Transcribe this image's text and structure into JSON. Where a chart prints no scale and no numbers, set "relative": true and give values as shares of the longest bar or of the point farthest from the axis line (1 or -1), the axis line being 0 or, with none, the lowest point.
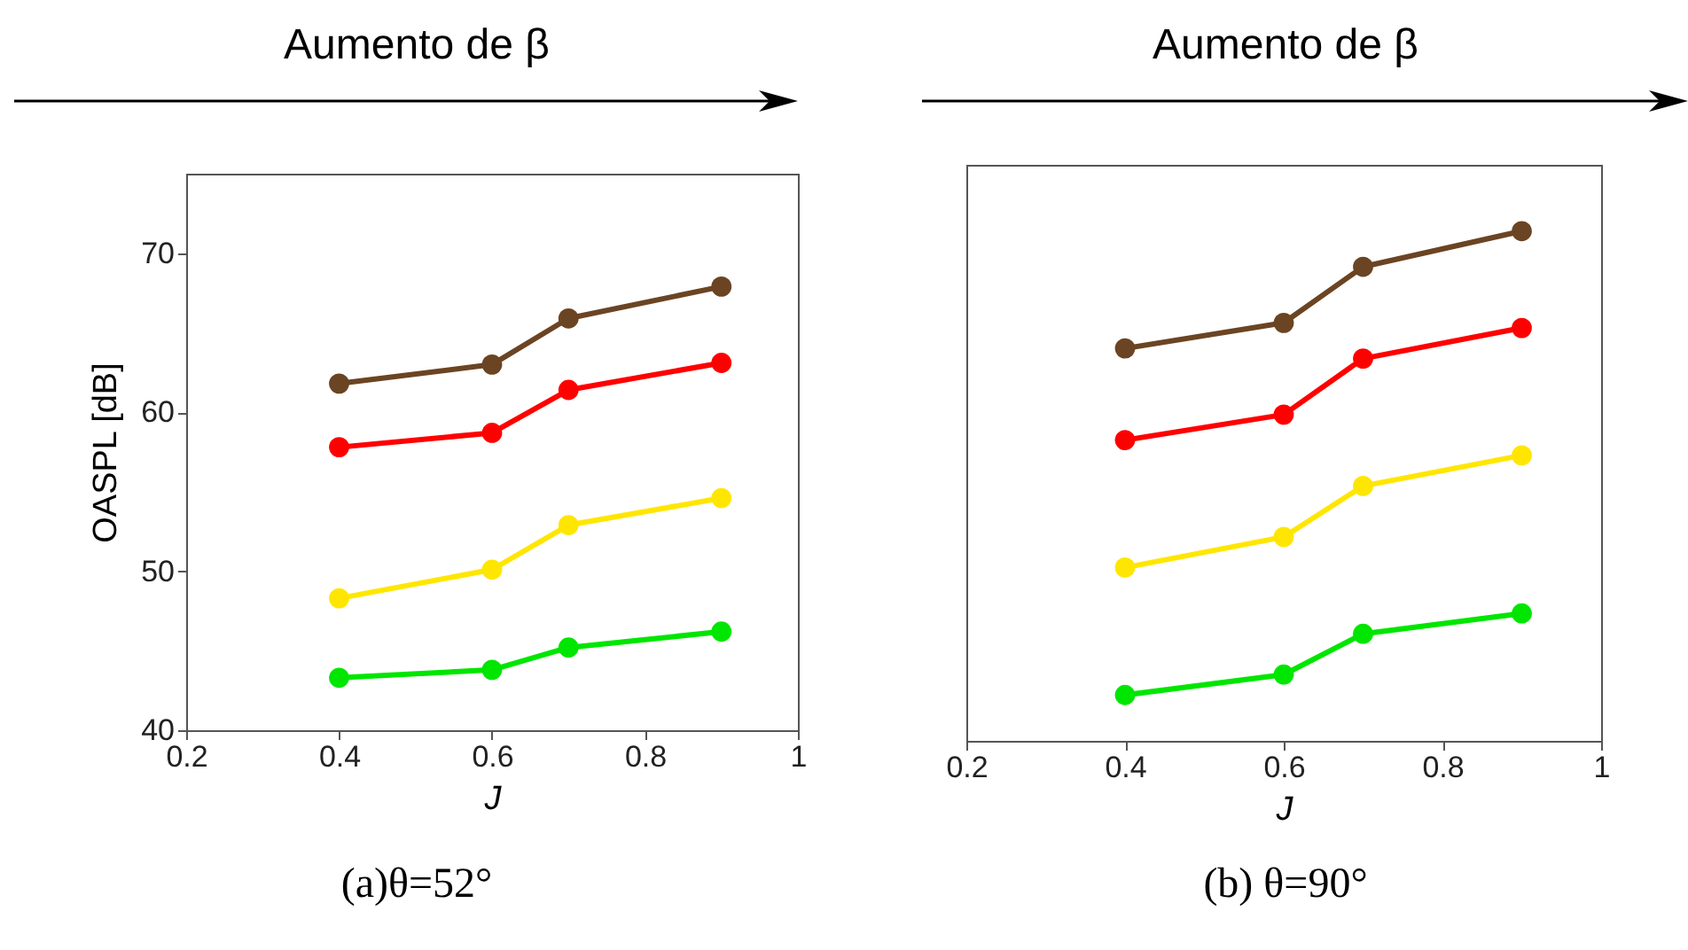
{
  "chart_data": [
    {
      "type": "line",
      "title": "Aumento de β",
      "xlabel": "J",
      "ylabel": "OASPL [dB]",
      "annotations": [
        "(a)θ=52°"
      ],
      "x": [
        0.4,
        0.6,
        0.7,
        0.9
      ],
      "xlim": [
        0.2,
        1
      ],
      "xticks": [
        0.2,
        0.4,
        0.6,
        0.8,
        1
      ],
      "ylim": [
        40,
        75
      ],
      "yticks": [
        40,
        50,
        60,
        70
      ],
      "marker": "circle",
      "grid": false,
      "series": [
        {
          "color": "#6b4423",
          "values": [
            61.8,
            63.0,
            65.9,
            67.9
          ]
        },
        {
          "color": "#ff0000",
          "values": [
            57.8,
            58.7,
            61.4,
            63.1
          ]
        },
        {
          "color": "#ffe600",
          "values": [
            48.3,
            50.1,
            52.9,
            54.6
          ]
        },
        {
          "color": "#00e600",
          "values": [
            43.3,
            43.8,
            45.2,
            46.2
          ]
        }
      ]
    },
    {
      "type": "line",
      "title": "Aumento de β",
      "xlabel": "J",
      "annotations": [
        "(b) θ=90°"
      ],
      "x": [
        0.4,
        0.6,
        0.7,
        0.9
      ],
      "xlim": [
        0.2,
        1
      ],
      "xticks": [
        0.2,
        0.4,
        0.6,
        0.8,
        1
      ],
      "relative": true,
      "marker": "circle",
      "grid": false,
      "series": [
        {
          "color": "#6b4423",
          "values": [
            0.77,
            0.82,
            0.93,
            1
          ]
        },
        {
          "color": "#ff0000",
          "values": [
            0.59,
            0.64,
            0.75,
            0.81
          ]
        },
        {
          "color": "#ffe600",
          "values": [
            0.34,
            0.4,
            0.5,
            0.56
          ]
        },
        {
          "color": "#00e600",
          "values": [
            0.09,
            0.13,
            0.21,
            0.25
          ]
        }
      ]
    }
  ]
}
